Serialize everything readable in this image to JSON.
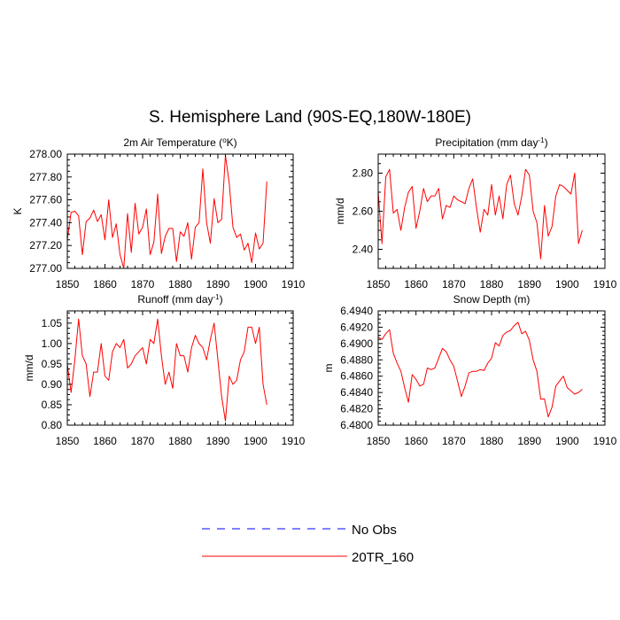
{
  "figure_title": "S. Hemisphere Land (90S-EQ,180W-180E)",
  "colors": {
    "model": "#ff0000",
    "obs": "#0000ff",
    "axis": "#000000"
  },
  "legend": [
    {
      "label": "No Obs",
      "style": "dashed",
      "color": "#0000ff"
    },
    {
      "label": "20TR_160",
      "style": "solid",
      "color": "#ff0000"
    }
  ],
  "chart_data": [
    {
      "type": "line",
      "title": "2m Air Temperature (",
      "title_sup": "o",
      "title_end": "K)",
      "ylabel": "K",
      "xlim": [
        1850,
        1910
      ],
      "ylim": [
        277.0,
        278.0
      ],
      "xticks": [
        "1850",
        "1860",
        "1870",
        "1880",
        "1890",
        "1900",
        "1910"
      ],
      "yticks": [
        {
          "v": 277.0,
          "label": "277.00"
        },
        {
          "v": 277.2,
          "label": "277.20"
        },
        {
          "v": 277.4,
          "label": "277.40"
        },
        {
          "v": 277.6,
          "label": "277.60"
        },
        {
          "v": 277.8,
          "label": "277.80"
        },
        {
          "v": 278.0,
          "label": "278.00"
        }
      ],
      "series": [
        {
          "name": "20TR_160",
          "x_start": 1850,
          "values": [
            277.25,
            277.49,
            277.5,
            277.46,
            277.12,
            277.41,
            277.44,
            277.51,
            277.41,
            277.47,
            277.25,
            277.6,
            277.27,
            277.39,
            277.12,
            277.0,
            277.48,
            277.14,
            277.57,
            277.3,
            277.36,
            277.52,
            277.12,
            277.23,
            277.65,
            277.13,
            277.28,
            277.35,
            277.35,
            277.06,
            277.32,
            277.28,
            277.4,
            277.08,
            277.36,
            277.4,
            277.87,
            277.4,
            277.22,
            277.61,
            277.4,
            277.43,
            277.99,
            277.75,
            277.36,
            277.27,
            277.3,
            277.16,
            277.22,
            277.05,
            277.31,
            277.17,
            277.22,
            277.76
          ]
        }
      ]
    },
    {
      "type": "line",
      "title": "Precipitation (mm day",
      "title_sup": "-1",
      "title_end": ")",
      "ylabel": "mm/d",
      "xlim": [
        1850,
        1910
      ],
      "ylim": [
        2.3,
        2.9
      ],
      "xticks": [
        "1850",
        "1860",
        "1870",
        "1880",
        "1890",
        "1900",
        "1910"
      ],
      "yticks": [
        {
          "v": 2.4,
          "label": "2.40"
        },
        {
          "v": 2.6,
          "label": "2.60"
        },
        {
          "v": 2.8,
          "label": "2.80"
        }
      ],
      "series": [
        {
          "name": "20TR_160",
          "x_start": 1850,
          "values": [
            2.7,
            2.43,
            2.78,
            2.82,
            2.59,
            2.61,
            2.5,
            2.62,
            2.7,
            2.73,
            2.51,
            2.6,
            2.72,
            2.65,
            2.68,
            2.68,
            2.72,
            2.56,
            2.63,
            2.62,
            2.68,
            2.66,
            2.65,
            2.64,
            2.72,
            2.77,
            2.62,
            2.49,
            2.61,
            2.58,
            2.74,
            2.58,
            2.68,
            2.56,
            2.74,
            2.79,
            2.64,
            2.58,
            2.68,
            2.82,
            2.79,
            2.6,
            2.54,
            2.35,
            2.63,
            2.47,
            2.52,
            2.68,
            2.74,
            2.73,
            2.71,
            2.69,
            2.8,
            2.43,
            2.5
          ]
        }
      ]
    },
    {
      "type": "line",
      "title": "Runoff (mm day",
      "title_sup": "-1",
      "title_end": ")",
      "ylabel": "mm/d",
      "xlim": [
        1850,
        1910
      ],
      "ylim": [
        0.8,
        1.08
      ],
      "xticks": [
        "1850",
        "1860",
        "1870",
        "1880",
        "1890",
        "1900",
        "1910"
      ],
      "yticks": [
        {
          "v": 0.8,
          "label": "0.80"
        },
        {
          "v": 0.85,
          "label": "0.85"
        },
        {
          "v": 0.9,
          "label": "0.90"
        },
        {
          "v": 0.95,
          "label": "0.95"
        },
        {
          "v": 1.0,
          "label": "1.00"
        },
        {
          "v": 1.05,
          "label": "1.05"
        }
      ],
      "series": [
        {
          "name": "20TR_160",
          "x_start": 1850,
          "values": [
            0.95,
            0.88,
            0.96,
            1.06,
            0.97,
            0.95,
            0.87,
            0.93,
            0.93,
            1.0,
            0.92,
            0.91,
            0.98,
            1.0,
            0.99,
            1.01,
            0.94,
            0.95,
            0.97,
            0.98,
            0.99,
            0.95,
            1.01,
            1.0,
            1.06,
            0.97,
            0.9,
            0.93,
            0.89,
            1.0,
            0.97,
            0.97,
            0.93,
            0.99,
            1.02,
            1.0,
            0.99,
            0.96,
            1.01,
            1.05,
            0.96,
            0.87,
            0.81,
            0.92,
            0.9,
            0.91,
            0.96,
            0.98,
            1.04,
            1.04,
            1.0,
            1.04,
            0.9,
            0.85
          ]
        }
      ]
    },
    {
      "type": "line",
      "title": "Snow Depth (m)",
      "title_sup": "",
      "title_end": "",
      "ylabel": "m",
      "xlim": [
        1850,
        1910
      ],
      "ylim": [
        6.48,
        6.494
      ],
      "xticks": [
        "1850",
        "1860",
        "1870",
        "1880",
        "1890",
        "1900",
        "1910"
      ],
      "yticks": [
        {
          "v": 6.48,
          "label": "6.4800"
        },
        {
          "v": 6.482,
          "label": "6.4820"
        },
        {
          "v": 6.484,
          "label": "6.4840"
        },
        {
          "v": 6.486,
          "label": "6.4860"
        },
        {
          "v": 6.488,
          "label": "6.4880"
        },
        {
          "v": 6.49,
          "label": "6.4900"
        },
        {
          "v": 6.492,
          "label": "6.4920"
        },
        {
          "v": 6.494,
          "label": "6.4940"
        }
      ],
      "series": [
        {
          "name": "20TR_160",
          "x_start": 1850,
          "values": [
            6.4908,
            6.4905,
            6.4912,
            6.4917,
            6.4888,
            6.4876,
            6.4866,
            6.4846,
            6.4828,
            6.4862,
            6.4856,
            6.4848,
            6.485,
            6.487,
            6.4868,
            6.487,
            6.4882,
            6.4894,
            6.489,
            6.488,
            6.4872,
            6.4854,
            6.4835,
            6.4848,
            6.4864,
            6.4866,
            6.4866,
            6.4868,
            6.4867,
            6.4876,
            6.4882,
            6.4901,
            6.4897,
            6.491,
            6.4914,
            6.4916,
            6.4922,
            6.4926,
            6.4912,
            6.4915,
            6.4904,
            6.488,
            6.4866,
            6.4832,
            6.4832,
            6.481,
            6.4822,
            6.4848,
            6.4854,
            6.486,
            6.4846,
            6.4842,
            6.4838,
            6.484,
            6.4844
          ]
        }
      ]
    }
  ]
}
